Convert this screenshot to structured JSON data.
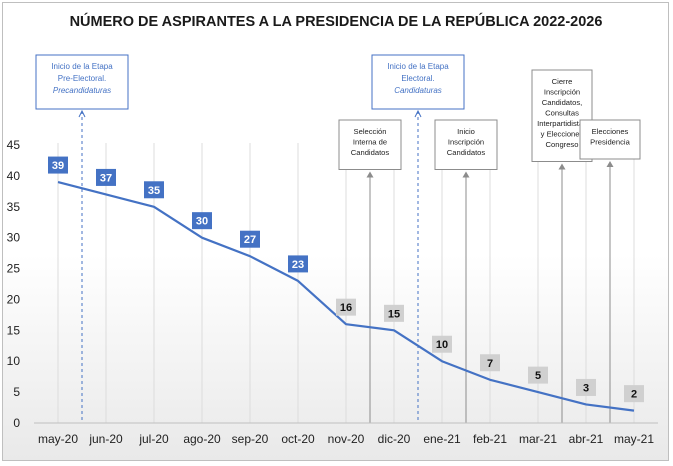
{
  "chart_data": {
    "type": "line",
    "title": "NÚMERO DE ASPIRANTES A LA PRESIDENCIA DE LA REPÚBLICA 2022-2026",
    "categories": [
      "may-20",
      "jun-20",
      "jul-20",
      "ago-20",
      "sep-20",
      "oct-20",
      "nov-20",
      "dic-20",
      "ene-21",
      "feb-21",
      "mar-21",
      "abr-21",
      "may-21"
    ],
    "series": [
      {
        "values": [
          39,
          37,
          35,
          30,
          27,
          23,
          16,
          15,
          10,
          7,
          5,
          3,
          2
        ]
      }
    ],
    "ylim": [
      0,
      45
    ],
    "yticks": [
      0,
      5,
      10,
      15,
      20,
      25,
      30,
      35,
      40,
      45
    ],
    "grid": "vertical",
    "colors": {
      "line": "#4472c4",
      "label_blue": "#4472c4",
      "label_gray": "#d0d0d0",
      "annotation_blue": "#4472c4",
      "annotation_gray": "#8c8c8c"
    },
    "annotations": [
      {
        "at": 0.5,
        "style": "blue-dashed",
        "lines": [
          "Inicio de la Etapa",
          "Pre-Electoral."
        ],
        "italic_line": "Precandidaturas"
      },
      {
        "at": 6.5,
        "style": "gray",
        "lines": [
          "Selección",
          "Interna de",
          "Candidatos"
        ]
      },
      {
        "at": 7.5,
        "style": "blue-dashed",
        "lines": [
          "Inicio de la Etapa",
          "Electoral."
        ],
        "italic_line": "Candidaturas"
      },
      {
        "at": 8.5,
        "style": "gray",
        "lines": [
          "Inicio",
          "Inscripción",
          "Candidatos"
        ]
      },
      {
        "at": 10.5,
        "style": "gray",
        "lines": [
          "Cierre",
          "Inscripción",
          "Candidatos,",
          "Consultas",
          "Interpartidistas",
          "y Elecciones",
          "Congreso"
        ]
      },
      {
        "at": 11.5,
        "style": "gray",
        "lines": [
          "Elecciones",
          "Presidencia"
        ]
      }
    ]
  }
}
